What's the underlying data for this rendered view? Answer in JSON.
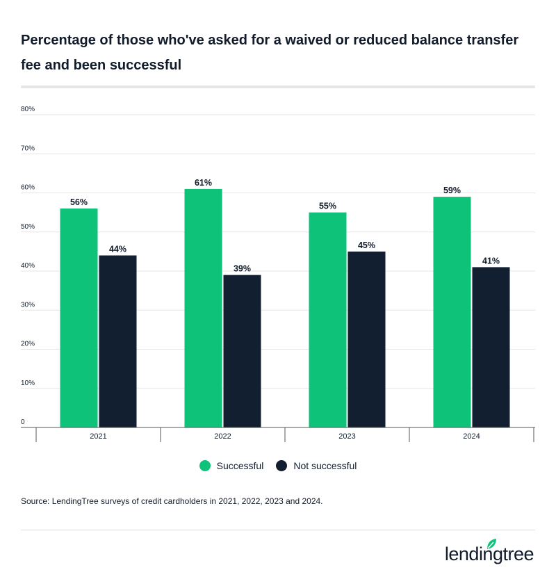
{
  "title": "Percentage of those who've asked for a waived or reduced balance transfer fee and been successful",
  "colors": {
    "successful": "#0fc27a",
    "not_successful": "#111f30",
    "grid": "#e6e6e6",
    "axis": "#555555"
  },
  "chart_data": {
    "type": "bar",
    "categories": [
      "2021",
      "2022",
      "2023",
      "2024"
    ],
    "series": [
      {
        "name": "Successful",
        "values": [
          56,
          61,
          55,
          59
        ]
      },
      {
        "name": "Not successful",
        "values": [
          44,
          39,
          45,
          41
        ]
      }
    ],
    "data_labels": [
      [
        "56%",
        "61%",
        "55%",
        "59%"
      ],
      [
        "44%",
        "39%",
        "45%",
        "41%"
      ]
    ],
    "yticks": [
      0,
      10,
      20,
      30,
      40,
      50,
      60,
      70,
      80
    ],
    "ytick_labels": [
      "0",
      "10%",
      "20%",
      "30%",
      "40%",
      "50%",
      "60%",
      "70%",
      "80%"
    ],
    "ylim": [
      0,
      80
    ],
    "grid": true,
    "legend_position": "bottom-center"
  },
  "legend": {
    "items": [
      "Successful",
      "Not successful"
    ]
  },
  "source": "Source: LendingTree surveys of credit cardholders in 2021, 2022, 2023 and 2024.",
  "logo": {
    "text": "lendingtree",
    "icon": "leaf-icon"
  }
}
